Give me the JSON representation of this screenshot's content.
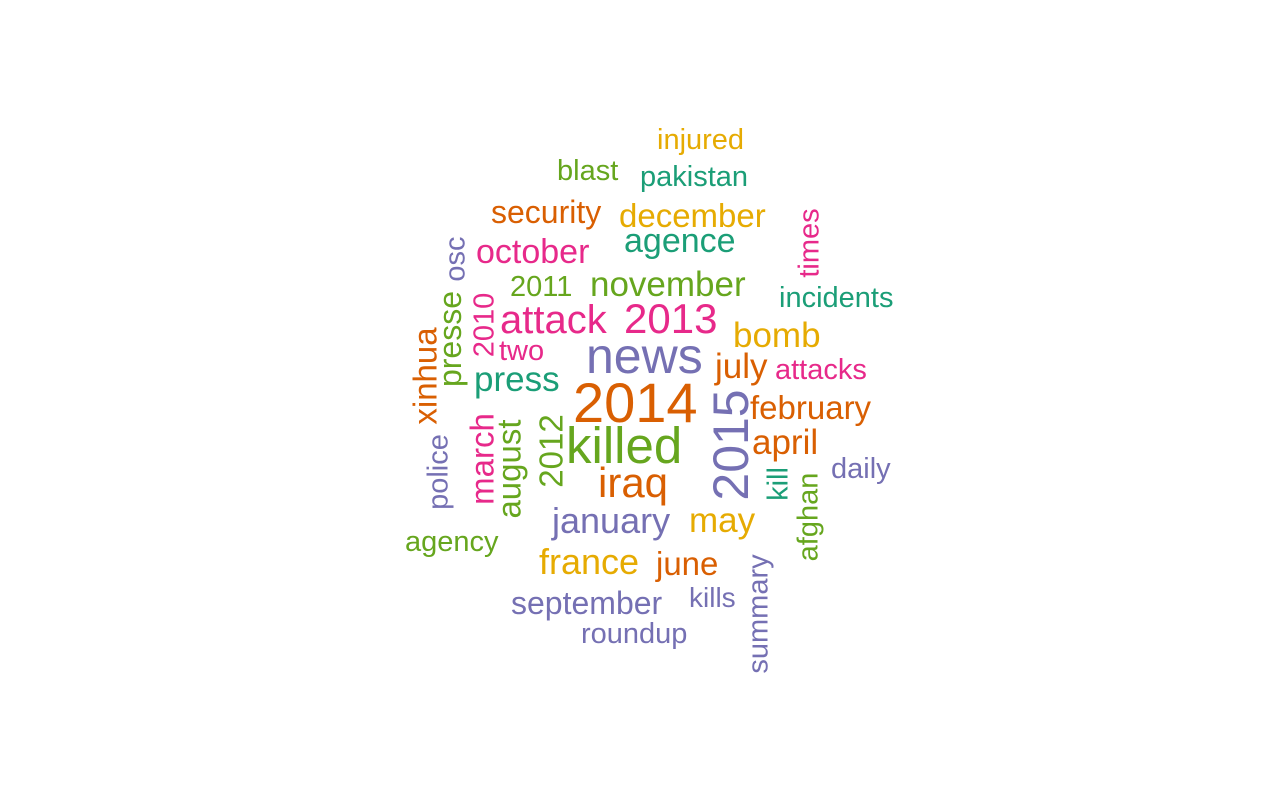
{
  "words": {
    "w2014": "2014",
    "killed": "killed",
    "news": "news",
    "w2015": "2015",
    "attack": "attack",
    "w2013": "2013",
    "iraq": "iraq",
    "press": "press",
    "november": "november",
    "january": "january",
    "october": "october",
    "agence": "agence",
    "security": "security",
    "december": "december",
    "bomb": "bomb",
    "july": "july",
    "april": "april",
    "february": "february",
    "may": "may",
    "france": "france",
    "june": "june",
    "september": "september",
    "pakistan": "pakistan",
    "injured": "injured",
    "blast": "blast",
    "incidents": "incidents",
    "attacks": "attacks",
    "daily": "daily",
    "roundup": "roundup",
    "kills": "kills",
    "agency": "agency",
    "two": "two",
    "w2011": "2011",
    "times": "times",
    "summary": "summary",
    "afghan": "afghan",
    "kill": "kill",
    "march": "march",
    "august": "august",
    "w2012": "2012",
    "w2010": "2010",
    "presse": "presse",
    "xinhua": "xinhua",
    "police": "police",
    "osc": "osc"
  },
  "palette": {
    "teal": "#1b9e77",
    "orange": "#d95f02",
    "purple": "#7570b3",
    "pink": "#e7298a",
    "green": "#66a61e",
    "gold": "#e6ab02"
  }
}
